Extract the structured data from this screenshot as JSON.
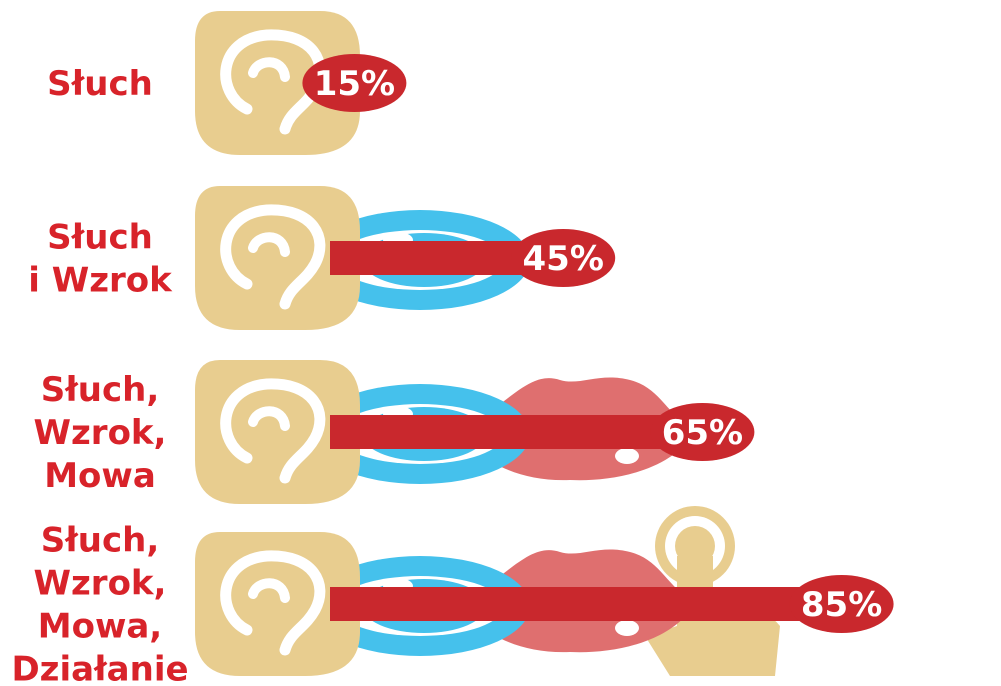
{
  "chart_data": {
    "type": "bar",
    "title": "",
    "xlabel": "",
    "ylabel": "",
    "xlim": [
      0,
      100
    ],
    "unit": "%",
    "categories": [
      [
        "Słuch"
      ],
      [
        "Słuch",
        "i Wzrok"
      ],
      [
        "Słuch,",
        "Wzrok,",
        "Mowa"
      ],
      [
        "Słuch,",
        "Wzrok,",
        "Mowa,",
        "Działanie"
      ]
    ],
    "values": [
      15,
      45,
      65,
      85
    ],
    "value_labels": [
      "15%",
      "45%",
      "65%",
      "85%"
    ],
    "icons": [
      [
        "ear-icon"
      ],
      [
        "ear-icon",
        "eye-icon"
      ],
      [
        "ear-icon",
        "eye-icon",
        "lips-icon"
      ],
      [
        "ear-icon",
        "eye-icon",
        "lips-icon",
        "hand-touch-icon"
      ]
    ]
  },
  "colors": {
    "bar": "#c9282d",
    "label": "#d8232a",
    "ear": "#e8cd8f",
    "eye": "#45c1ec",
    "lips": "#df6f6f",
    "hand": "#e8cd8f",
    "inner": "#ffffff"
  }
}
